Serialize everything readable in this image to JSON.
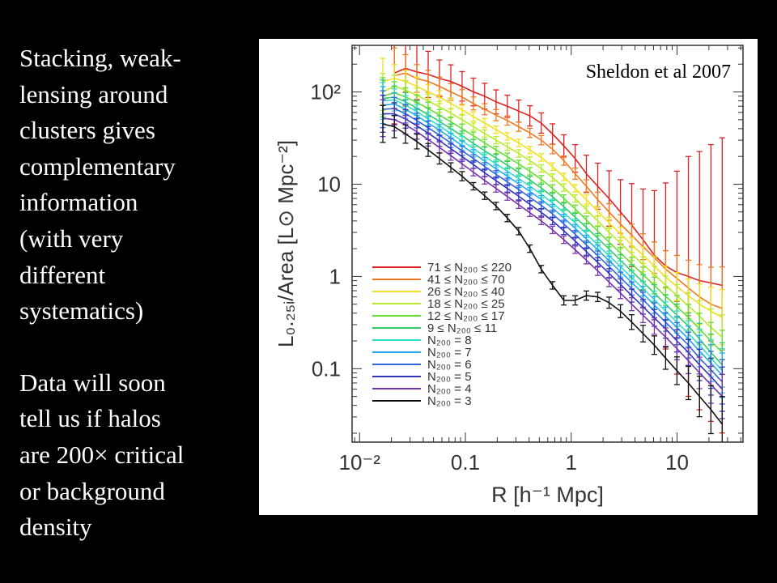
{
  "slide": {
    "paragraph1": "Stacking, weak-lensing around clusters gives complementary information (with very different systematics)",
    "paragraph1_lines": [
      "Stacking, weak-",
      "lensing around",
      "clusters gives",
      "complementary",
      "information",
      "(with very",
      "different",
      "systematics)"
    ],
    "paragraph2": "Data will soon tell us if halos are 200× critical or background density",
    "paragraph2_lines": [
      "Data will soon",
      "tell us if halos",
      "are 200× critical",
      "or background",
      "density"
    ]
  },
  "chart_data": {
    "type": "line",
    "title": "",
    "annotation": "Sheldon et al 2007",
    "xlabel": "R  [h⁻¹ Mpc]",
    "ylabel": "L₀.₂₅ᵢ/Area  [L⊙ Mpc⁻²]",
    "xscale": "log",
    "yscale": "log",
    "xlim": [
      0.0085,
      42
    ],
    "ylim": [
      0.016,
      320
    ],
    "xticks": [
      {
        "value": 0.01,
        "label": "10⁻²"
      },
      {
        "value": 0.1,
        "label": "0.1"
      },
      {
        "value": 1,
        "label": "1"
      },
      {
        "value": 10,
        "label": "10"
      }
    ],
    "yticks": [
      {
        "value": 0.1,
        "label": "0.1"
      },
      {
        "value": 1,
        "label": "1"
      },
      {
        "value": 10,
        "label": "10"
      },
      {
        "value": 100,
        "label": "10²"
      }
    ],
    "x": [
      0.0166,
      0.0213,
      0.0272,
      0.0348,
      0.0445,
      0.0569,
      0.0728,
      0.0931,
      0.119,
      0.152,
      0.195,
      0.249,
      0.319,
      0.407,
      0.521,
      0.666,
      0.852,
      1.09,
      1.39,
      1.78,
      2.28,
      2.92,
      3.73,
      4.77,
      6.1,
      7.8,
      9.98,
      12.8,
      16.3,
      20.9,
      26.7
    ],
    "legend_position": "lower-left",
    "series": [
      {
        "name": "71 ≤ N₂₀₀ ≤ 220",
        "color": "#dd2222",
        "values": [
          null,
          160,
          180,
          165,
          155,
          140,
          130,
          115,
          100,
          90,
          78,
          70,
          62,
          55,
          46,
          35,
          26,
          19,
          13,
          9.5,
          7,
          5,
          3.6,
          2.5,
          1.7,
          1.3,
          1.1,
          1.0,
          0.9,
          0.85,
          0.8
        ],
        "errors": [
          null,
          0.55,
          0.4,
          0.3,
          0.25,
          0.2,
          0.18,
          0.16,
          0.15,
          0.14,
          0.13,
          0.12,
          0.12,
          0.11,
          0.11,
          0.11,
          0.12,
          0.15,
          0.2,
          0.25,
          0.3,
          0.35,
          0.45,
          0.55,
          0.7,
          0.9,
          1.1,
          1.3,
          1.4,
          1.5,
          1.6
        ]
      },
      {
        "name": "41 ≤ N₂₀₀ ≤ 70",
        "color": "#f07820",
        "values": [
          null,
          150,
          160,
          140,
          130,
          115,
          100,
          88,
          75,
          65,
          56,
          49,
          42,
          36,
          30,
          24,
          18,
          13,
          9.5,
          6.8,
          5.0,
          3.7,
          2.8,
          2.1,
          1.6,
          1.2,
          0.95,
          0.75,
          0.6,
          0.5,
          0.45
        ],
        "errors": [
          null,
          0.3,
          0.2,
          0.15,
          0.12,
          0.1,
          0.09,
          0.08,
          0.07,
          0.06,
          0.06,
          0.05,
          0.05,
          0.05,
          0.05,
          0.05,
          0.05,
          0.06,
          0.07,
          0.08,
          0.09,
          0.1,
          0.12,
          0.14,
          0.17,
          0.2,
          0.25,
          0.3,
          0.35,
          0.4,
          0.45
        ]
      },
      {
        "name": "26 ≤ N₂₀₀ ≤ 40",
        "color": "#f0e020",
        "values": [
          130,
          140,
          130,
          115,
          100,
          88,
          75,
          64,
          54,
          46,
          39,
          33,
          28,
          23.5,
          19.5,
          15.5,
          12,
          9,
          6.8,
          5.1,
          3.8,
          2.9,
          2.2,
          1.7,
          1.3,
          0.98,
          0.78,
          0.62,
          0.5,
          0.42,
          0.36
        ],
        "errors": [
          0.25,
          0.15,
          0.12,
          0.1,
          0.08,
          0.07,
          0.06,
          0.05,
          0.05,
          0.05,
          0.04,
          0.04,
          0.04,
          0.04,
          0.04,
          0.04,
          0.04,
          0.04,
          0.05,
          0.05,
          0.06,
          0.07,
          0.08,
          0.09,
          0.1,
          0.12,
          0.15,
          0.18,
          0.22,
          0.26,
          0.3
        ]
      },
      {
        "name": "18 ≤ N₂₀₀ ≤ 25",
        "color": "#b8ea2a",
        "values": [
          100,
          115,
          105,
          92,
          80,
          69,
          59,
          50,
          42,
          35.5,
          30,
          25.5,
          21.5,
          18,
          14.8,
          11.8,
          9.2,
          7.0,
          5.3,
          4.0,
          3.0,
          2.3,
          1.75,
          1.35,
          1.05,
          0.8,
          0.62,
          0.48,
          0.37,
          0.28,
          0.22
        ],
        "errors": [
          0.2,
          0.12,
          0.1,
          0.08,
          0.07,
          0.06,
          0.05,
          0.05,
          0.04,
          0.04,
          0.04,
          0.04,
          0.04,
          0.04,
          0.04,
          0.04,
          0.04,
          0.04,
          0.04,
          0.05,
          0.05,
          0.06,
          0.07,
          0.08,
          0.09,
          0.1,
          0.12,
          0.14,
          0.17,
          0.2,
          0.24
        ]
      },
      {
        "name": "12 ≤ N₂₀₀ ≤ 17",
        "color": "#66dd33",
        "values": [
          90,
          98,
          88,
          77,
          66,
          56,
          47.5,
          40,
          33.5,
          28,
          23.5,
          19.8,
          16.6,
          13.8,
          11.3,
          9.0,
          7.0,
          5.4,
          4.1,
          3.1,
          2.35,
          1.8,
          1.37,
          1.05,
          0.8,
          0.61,
          0.47,
          0.36,
          0.27,
          0.2,
          0.15
        ],
        "errors": [
          0.2,
          0.12,
          0.1,
          0.08,
          0.07,
          0.06,
          0.05,
          0.05,
          0.04,
          0.04,
          0.04,
          0.04,
          0.04,
          0.04,
          0.04,
          0.04,
          0.04,
          0.04,
          0.04,
          0.05,
          0.05,
          0.06,
          0.07,
          0.08,
          0.09,
          0.1,
          0.12,
          0.14,
          0.17,
          0.2,
          0.24
        ]
      },
      {
        "name": "9 ≤ N₂₀₀ ≤ 11",
        "color": "#33cc66",
        "values": [
          85,
          88,
          78,
          67,
          57,
          48,
          40,
          33.5,
          27.8,
          23,
          19.2,
          16.1,
          13.4,
          11.1,
          9.1,
          7.3,
          5.7,
          4.4,
          3.4,
          2.6,
          1.98,
          1.5,
          1.14,
          0.87,
          0.66,
          0.5,
          0.38,
          0.29,
          0.21,
          0.15,
          0.11
        ],
        "errors": [
          0.2,
          0.12,
          0.1,
          0.08,
          0.07,
          0.06,
          0.05,
          0.05,
          0.04,
          0.04,
          0.04,
          0.04,
          0.04,
          0.04,
          0.04,
          0.04,
          0.04,
          0.04,
          0.04,
          0.05,
          0.05,
          0.06,
          0.07,
          0.08,
          0.09,
          0.1,
          0.12,
          0.14,
          0.17,
          0.2,
          0.24
        ]
      },
      {
        "name": "N₂₀₀ = 8",
        "color": "#33ddcc",
        "values": [
          80,
          82,
          72,
          61,
          51,
          43,
          35.5,
          29.5,
          24.3,
          20,
          16.6,
          13.8,
          11.5,
          9.5,
          7.8,
          6.25,
          4.9,
          3.8,
          2.9,
          2.2,
          1.68,
          1.28,
          0.97,
          0.74,
          0.56,
          0.42,
          0.32,
          0.24,
          0.18,
          0.13,
          0.095
        ],
        "errors": [
          0.2,
          0.12,
          0.1,
          0.08,
          0.07,
          0.06,
          0.05,
          0.05,
          0.04,
          0.04,
          0.04,
          0.04,
          0.04,
          0.04,
          0.04,
          0.04,
          0.04,
          0.04,
          0.04,
          0.05,
          0.05,
          0.06,
          0.07,
          0.08,
          0.09,
          0.1,
          0.12,
          0.14,
          0.17,
          0.2,
          0.24
        ]
      },
      {
        "name": "N₂₀₀ = 7",
        "color": "#22aaee",
        "values": [
          72,
          74,
          65,
          55,
          46,
          38.5,
          31.8,
          26.2,
          21.6,
          17.8,
          14.7,
          12.2,
          10.1,
          8.35,
          6.85,
          5.5,
          4.3,
          3.33,
          2.55,
          1.95,
          1.48,
          1.13,
          0.86,
          0.65,
          0.49,
          0.37,
          0.28,
          0.21,
          0.155,
          0.115,
          0.085
        ],
        "errors": [
          0.2,
          0.12,
          0.1,
          0.08,
          0.07,
          0.06,
          0.05,
          0.05,
          0.04,
          0.04,
          0.04,
          0.04,
          0.04,
          0.04,
          0.04,
          0.04,
          0.04,
          0.04,
          0.04,
          0.05,
          0.05,
          0.06,
          0.07,
          0.08,
          0.09,
          0.1,
          0.12,
          0.14,
          0.17,
          0.2,
          0.24
        ]
      },
      {
        "name": "N₂₀₀ = 6",
        "color": "#3366dd",
        "values": [
          65,
          66,
          58,
          49,
          41,
          34,
          28,
          23,
          19,
          15.6,
          12.8,
          10.6,
          8.75,
          7.2,
          5.9,
          4.75,
          3.7,
          2.87,
          2.2,
          1.68,
          1.28,
          0.97,
          0.74,
          0.56,
          0.42,
          0.32,
          0.24,
          0.18,
          0.13,
          0.097,
          0.072
        ],
        "errors": [
          0.2,
          0.12,
          0.1,
          0.08,
          0.07,
          0.06,
          0.05,
          0.05,
          0.04,
          0.04,
          0.04,
          0.04,
          0.04,
          0.04,
          0.04,
          0.04,
          0.04,
          0.04,
          0.04,
          0.05,
          0.05,
          0.06,
          0.07,
          0.08,
          0.09,
          0.1,
          0.12,
          0.14,
          0.17,
          0.2,
          0.24
        ]
      },
      {
        "name": "N₂₀₀ = 5",
        "color": "#3333bb",
        "values": [
          58,
          58,
          51,
          43,
          35.8,
          29.6,
          24.3,
          19.9,
          16.3,
          13.3,
          10.9,
          9.0,
          7.4,
          6.05,
          4.95,
          4.0,
          3.12,
          2.42,
          1.86,
          1.42,
          1.08,
          0.82,
          0.62,
          0.47,
          0.355,
          0.27,
          0.2,
          0.15,
          0.11,
          0.082,
          0.06
        ],
        "errors": [
          0.2,
          0.12,
          0.1,
          0.08,
          0.07,
          0.06,
          0.05,
          0.05,
          0.04,
          0.04,
          0.04,
          0.04,
          0.04,
          0.04,
          0.04,
          0.04,
          0.04,
          0.04,
          0.04,
          0.05,
          0.05,
          0.06,
          0.07,
          0.08,
          0.09,
          0.1,
          0.12,
          0.14,
          0.17,
          0.2,
          0.24
        ]
      },
      {
        "name": "N₂₀₀ = 4",
        "color": "#7733aa",
        "values": [
          52,
          50,
          44,
          37,
          30.5,
          25,
          20.4,
          16.6,
          13.5,
          11,
          9,
          7.35,
          6.0,
          4.9,
          4.0,
          3.2,
          2.5,
          1.95,
          1.5,
          1.15,
          0.87,
          0.66,
          0.5,
          0.38,
          0.29,
          0.22,
          0.165,
          0.122,
          0.09,
          0.067,
          0.05
        ],
        "errors": [
          0.2,
          0.12,
          0.1,
          0.08,
          0.07,
          0.06,
          0.05,
          0.05,
          0.04,
          0.04,
          0.04,
          0.04,
          0.04,
          0.04,
          0.04,
          0.04,
          0.04,
          0.04,
          0.04,
          0.05,
          0.05,
          0.06,
          0.07,
          0.08,
          0.09,
          0.1,
          0.12,
          0.14,
          0.17,
          0.2,
          0.24
        ]
      },
      {
        "name": "N₂₀₀ = 3",
        "color": "#111111",
        "values": [
          45,
          42,
          35,
          29,
          23.5,
          19,
          15.2,
          12.2,
          9.5,
          7.5,
          5.8,
          4.3,
          3.1,
          2.0,
          1.2,
          0.8,
          0.55,
          0.55,
          0.62,
          0.6,
          0.52,
          0.42,
          0.32,
          0.24,
          0.18,
          0.13,
          0.095,
          0.07,
          0.05,
          0.036,
          0.025
        ],
        "errors": [
          0.2,
          0.12,
          0.1,
          0.08,
          0.07,
          0.06,
          0.05,
          0.05,
          0.04,
          0.04,
          0.04,
          0.04,
          0.04,
          0.04,
          0.04,
          0.04,
          0.05,
          0.05,
          0.05,
          0.05,
          0.06,
          0.07,
          0.08,
          0.09,
          0.1,
          0.12,
          0.15,
          0.18,
          0.22,
          0.26,
          0.3
        ]
      }
    ]
  }
}
